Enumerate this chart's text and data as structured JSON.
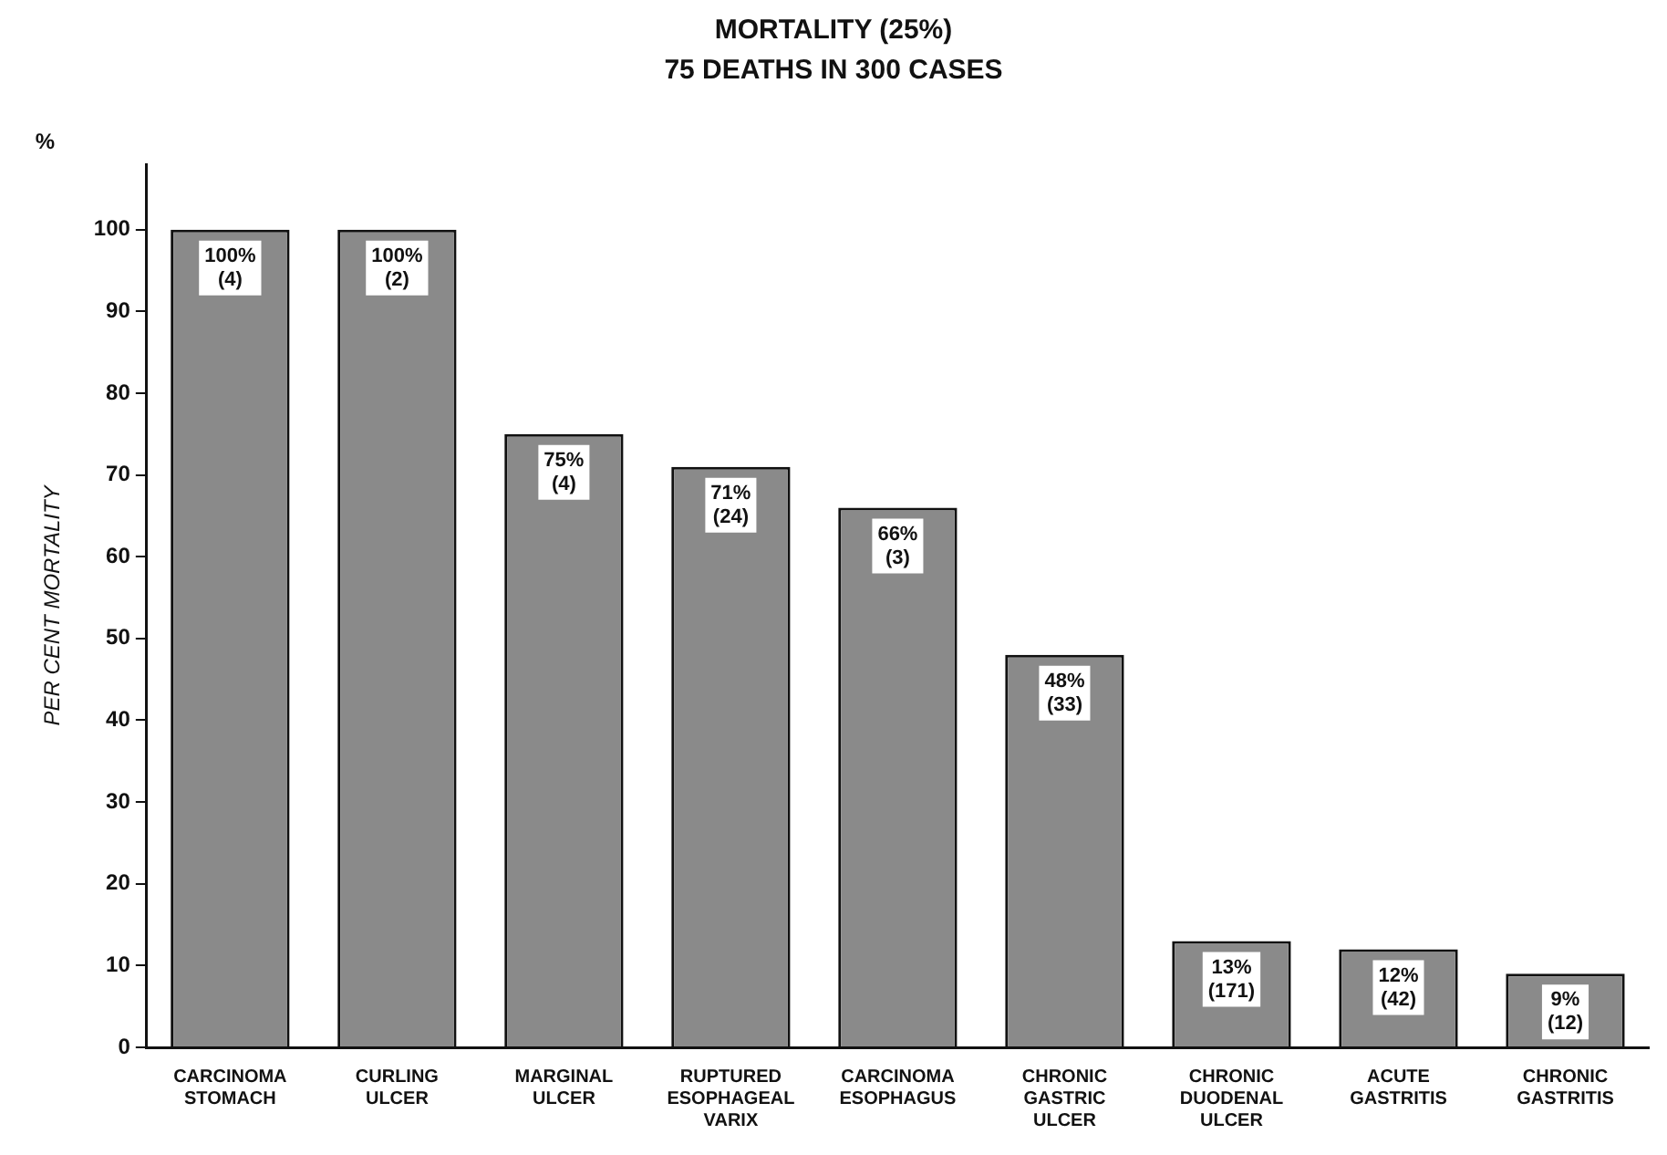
{
  "chart_data": {
    "type": "bar",
    "title": "MORTALITY   (25%)",
    "subtitle": "75 DEATHS  IN  300 CASES",
    "ylabel": "PER CENT MORTALITY",
    "annotations": [
      "%"
    ],
    "categories": [
      "CARCINOMA\nSTOMACH",
      "CURLING\nULCER",
      "MARGINAL\nULCER",
      "RUPTURED\nESOPHAGEAL\nVARIX",
      "CARCINOMA\nESOPHAGUS",
      "CHRONIC\nGASTRIC\nULCER",
      "CHRONIC\nDUODENAL\nULCER",
      "ACUTE\nGASTRITIS",
      "CHRONIC\nGASTRITIS"
    ],
    "values": [
      100,
      100,
      75,
      71,
      66,
      48,
      13,
      12,
      9
    ],
    "value_labels": [
      "100%\n(4)",
      "100%\n(2)",
      "75%\n(4)",
      "71%\n(24)",
      "66%\n(3)",
      "48%\n(33)",
      "13%\n(171)",
      "12%\n(42)",
      "9%\n(12)"
    ],
    "color": "#8a8a8a",
    "ylim": [
      0,
      108
    ],
    "yticks": [
      0,
      10,
      20,
      30,
      40,
      50,
      60,
      70,
      80,
      90,
      100
    ],
    "grid": false,
    "legend": false
  }
}
